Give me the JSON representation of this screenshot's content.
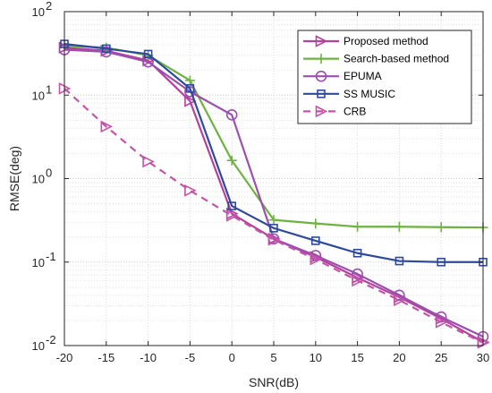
{
  "chart_data": {
    "type": "line",
    "title": "",
    "xlabel": "SNR(dB)",
    "ylabel": "RMSE(deg)",
    "x": [
      -20,
      -15,
      -10,
      -5,
      0,
      5,
      10,
      15,
      20,
      25,
      30
    ],
    "xlim": [
      -20,
      30
    ],
    "ylim": [
      0.01,
      100
    ],
    "yscale": "log",
    "grid": true,
    "legend_position": "top-right",
    "x_ticks": [
      "-20",
      "-15",
      "-10",
      "-5",
      "0",
      "5",
      "10",
      "15",
      "20",
      "25",
      "30"
    ],
    "y_ticks": [
      {
        "base": "10",
        "exp": "-2"
      },
      {
        "base": "10",
        "exp": "-1"
      },
      {
        "base": "10",
        "exp": "0"
      },
      {
        "base": "10",
        "exp": "1"
      },
      {
        "base": "10",
        "exp": "2"
      }
    ],
    "series": [
      {
        "name": "Proposed method",
        "color": "#B5409D",
        "marker": "triangle-right",
        "dashed": false,
        "values": [
          37,
          34,
          26,
          8.5,
          0.38,
          0.19,
          0.115,
          0.065,
          0.038,
          0.021,
          0.011
        ]
      },
      {
        "name": "Search-based method",
        "color": "#6DB33F",
        "marker": "plus",
        "dashed": false,
        "values": [
          39,
          37,
          30,
          15,
          1.65,
          0.32,
          0.29,
          0.265,
          0.265,
          0.262,
          0.26
        ]
      },
      {
        "name": "EPUMA",
        "color": "#9B4FAF",
        "marker": "circle",
        "dashed": false,
        "values": [
          35,
          33,
          25,
          11,
          5.8,
          0.19,
          0.12,
          0.072,
          0.04,
          0.022,
          0.0128
        ]
      },
      {
        "name": "SS MUSIC",
        "color": "#2E4A9E",
        "marker": "square",
        "dashed": false,
        "values": [
          41,
          36,
          31,
          12,
          0.47,
          0.255,
          0.18,
          0.128,
          0.103,
          0.1,
          0.1
        ]
      },
      {
        "name": "CRB",
        "color": "#C653A9",
        "marker": "triangle-right",
        "dashed": true,
        "values": [
          12,
          4.2,
          1.6,
          0.72,
          0.36,
          0.185,
          0.108,
          0.06,
          0.035,
          0.019,
          0.0108
        ]
      }
    ]
  }
}
